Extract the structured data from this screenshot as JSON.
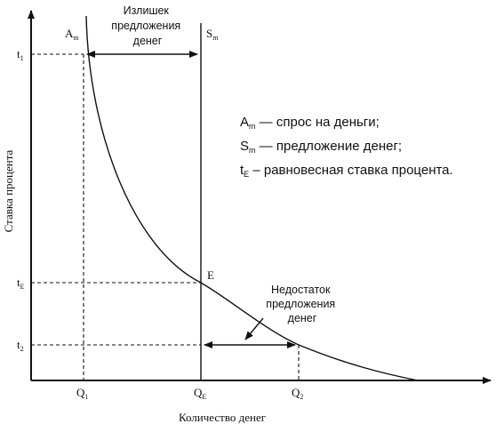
{
  "axes": {
    "x_title": "Количество денег",
    "y_title": "Ставка процента",
    "x_ticks": [
      {
        "main": "Q",
        "sub": "1"
      },
      {
        "main": "Q",
        "sub": "E"
      },
      {
        "main": "Q",
        "sub": "2"
      }
    ],
    "y_ticks": [
      {
        "main": "t",
        "sub": "1"
      },
      {
        "main": "t",
        "sub": "E"
      },
      {
        "main": "t",
        "sub": "2"
      }
    ]
  },
  "curves": {
    "demand": {
      "main": "A",
      "sub": "m"
    },
    "supply": {
      "main": "S",
      "sub": "m"
    },
    "equilibrium": "E"
  },
  "annotations": {
    "surplus": [
      "Излишек",
      "предложения",
      "денег"
    ],
    "shortage": [
      "Недостаток",
      "предложения",
      "денег"
    ]
  },
  "legend": [
    {
      "main": "A",
      "sub": "m",
      "text": " — спрос на деньги;"
    },
    {
      "main": "S",
      "sub": "m",
      "text": " — предложение денег;"
    },
    {
      "main": "t",
      "sub": "E",
      "text": " –  равновесная ставка процента."
    }
  ]
}
